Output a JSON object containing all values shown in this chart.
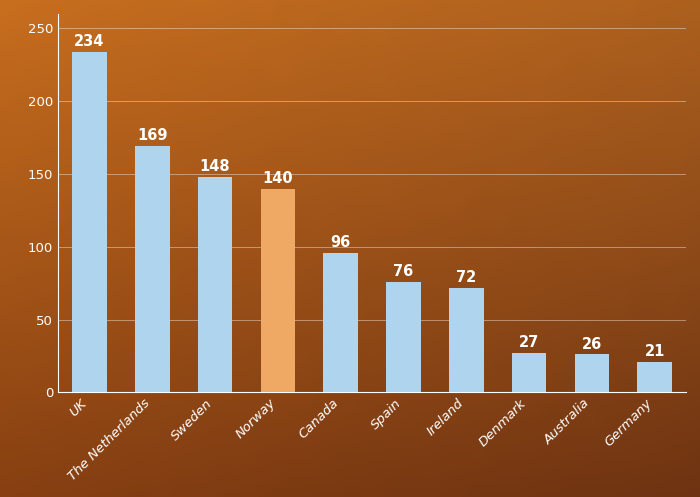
{
  "categories": [
    "UK",
    "The Netherlands",
    "Sweden",
    "Norway",
    "Canada",
    "Spain",
    "Ireland",
    "Denmark",
    "Australia",
    "Germany"
  ],
  "values": [
    234,
    169,
    148,
    140,
    96,
    76,
    72,
    27,
    26,
    21
  ],
  "bar_colors": [
    "#aed4ee",
    "#aed4ee",
    "#aed4ee",
    "#f0a865",
    "#aed4ee",
    "#aed4ee",
    "#aed4ee",
    "#aed4ee",
    "#aed4ee",
    "#aed4ee"
  ],
  "ylim": [
    0,
    260
  ],
  "yticks": [
    0,
    50,
    100,
    150,
    200,
    250
  ],
  "label_color": "#ffffff",
  "label_fontsize": 10.5,
  "tick_label_fontsize": 9.5,
  "tick_color": "#ffffff",
  "grid_color": "#ffffff",
  "grid_alpha": 0.4,
  "spine_color": "#ffffff",
  "bar_width": 0.55,
  "fig_width": 7.0,
  "fig_height": 4.97,
  "dpi": 100
}
